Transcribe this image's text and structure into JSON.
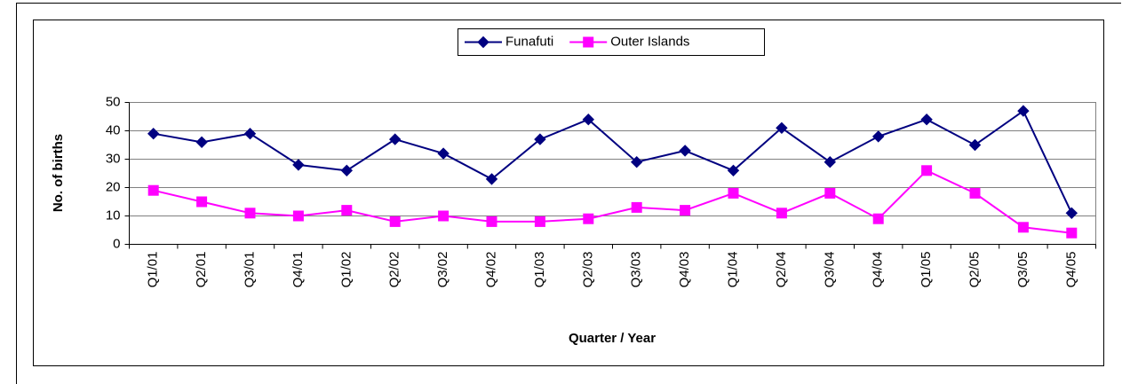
{
  "chart_data": {
    "type": "line",
    "xlabel": "Quarter / Year",
    "ylabel": "No. of births",
    "categories": [
      "Q1/01",
      "Q2/01",
      "Q3/01",
      "Q4/01",
      "Q1/02",
      "Q2/02",
      "Q3/02",
      "Q4/02",
      "Q1/03",
      "Q2/03",
      "Q3/03",
      "Q4/03",
      "Q1/04",
      "Q2/04",
      "Q3/04",
      "Q4/04",
      "Q1/05",
      "Q2/05",
      "Q3/05",
      "Q4/05"
    ],
    "series": [
      {
        "name": "Funafuti",
        "color": "#000080",
        "marker": "diamond",
        "values": [
          39,
          36,
          39,
          28,
          26,
          37,
          32,
          23,
          37,
          44,
          29,
          33,
          26,
          41,
          29,
          38,
          44,
          35,
          47,
          11
        ]
      },
      {
        "name": "Outer Islands",
        "color": "#ff00ff",
        "marker": "square",
        "values": [
          19,
          15,
          11,
          10,
          12,
          8,
          10,
          8,
          8,
          9,
          13,
          12,
          18,
          11,
          18,
          9,
          26,
          18,
          6,
          4
        ]
      }
    ],
    "ylim": [
      0,
      50
    ],
    "yticks": [
      0,
      10,
      20,
      30,
      40,
      50
    ],
    "grid": true,
    "legend": "top"
  }
}
